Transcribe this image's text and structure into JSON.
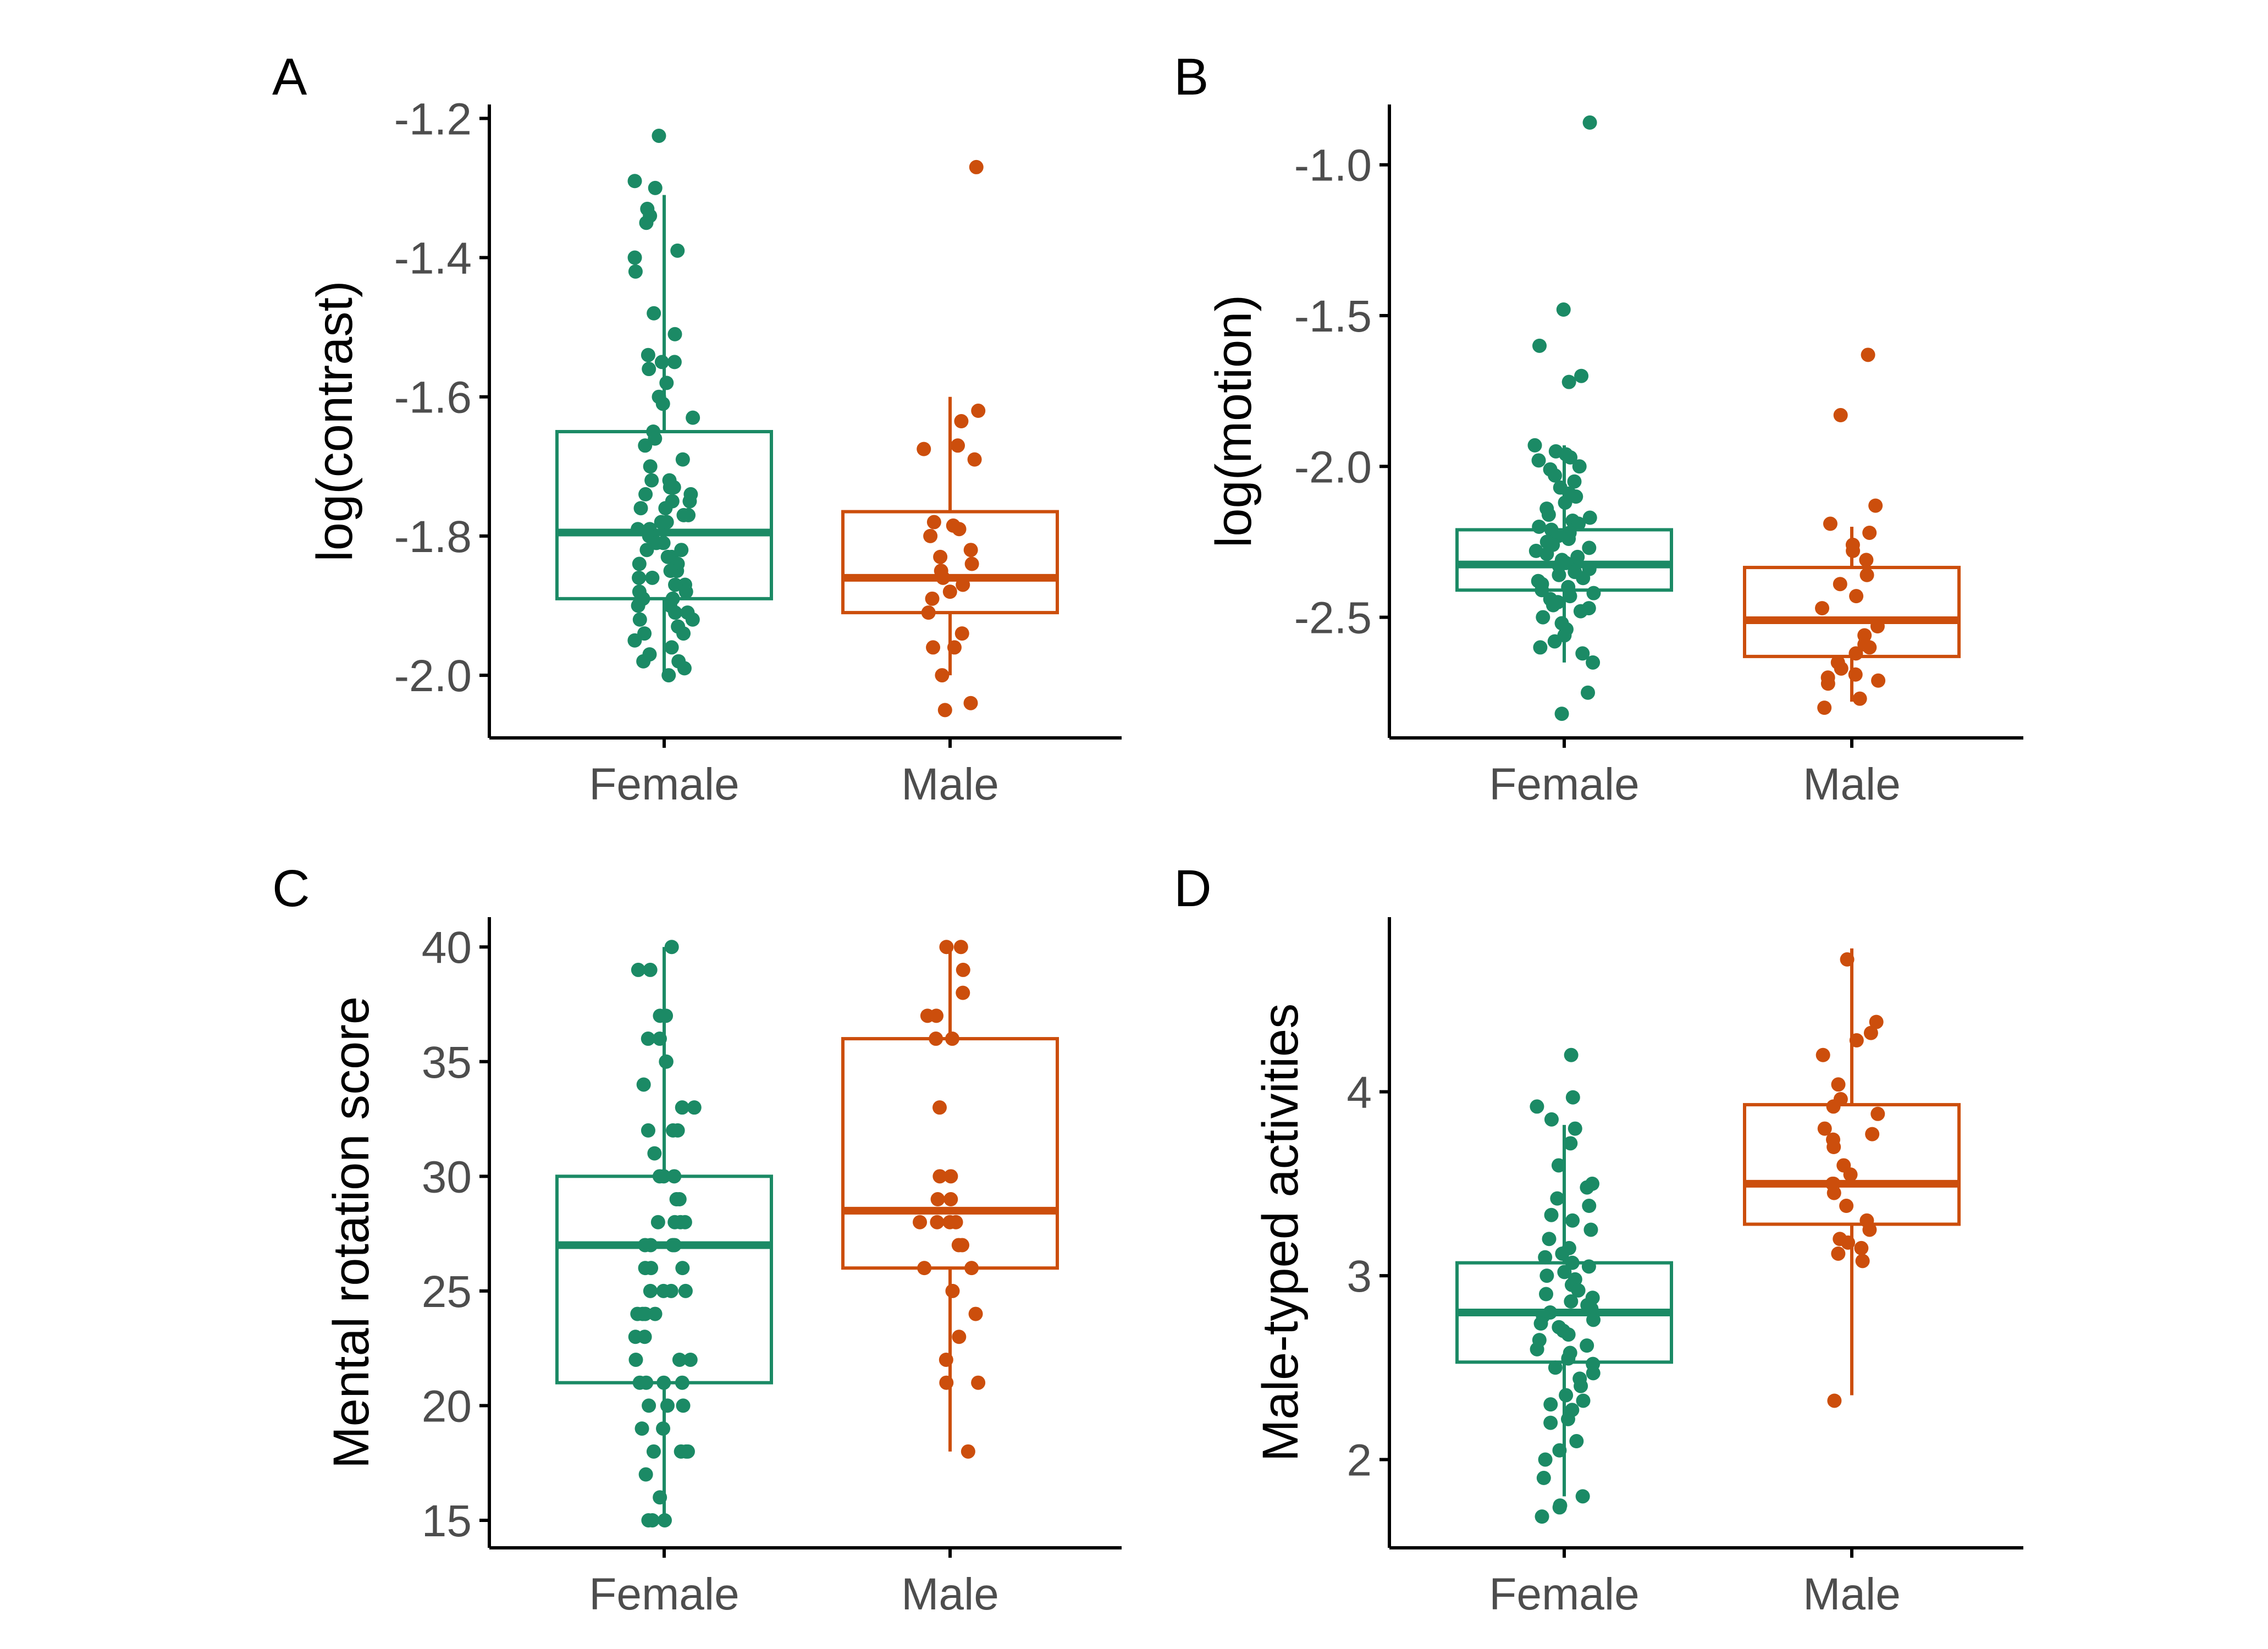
{
  "colors": {
    "Female": "#1b8a65",
    "Male": "#cc4e0c",
    "axis": "#000000",
    "tick_text": "#4d4d4d"
  },
  "chart_data": [
    {
      "panel": "A",
      "type": "boxplot",
      "ylabel": "log(contrast)",
      "ylim": [
        -2.09,
        -1.18
      ],
      "yticks": [
        -1.2,
        -1.4,
        -1.6,
        -1.8,
        -2.0
      ],
      "ytick_labels": [
        "-1.2",
        "-1.4",
        "-1.6",
        "-1.8",
        "-2.0"
      ],
      "categories": [
        "Female",
        "Male"
      ],
      "grid": false,
      "boxes": [
        {
          "category": "Female",
          "lower_whisker": -2.0,
          "q1": -1.89,
          "median": -1.795,
          "q3": -1.65,
          "upper_whisker": -1.31,
          "points": [
            -1.225,
            -1.29,
            -1.3,
            -1.33,
            -1.34,
            -1.35,
            -1.39,
            -1.4,
            -1.42,
            -1.48,
            -1.51,
            -1.54,
            -1.55,
            -1.55,
            -1.56,
            -1.58,
            -1.6,
            -1.61,
            -1.63,
            -1.65,
            -1.66,
            -1.67,
            -1.69,
            -1.7,
            -1.72,
            -1.72,
            -1.73,
            -1.73,
            -1.74,
            -1.74,
            -1.75,
            -1.75,
            -1.76,
            -1.76,
            -1.77,
            -1.77,
            -1.78,
            -1.78,
            -1.79,
            -1.79,
            -1.8,
            -1.8,
            -1.81,
            -1.81,
            -1.82,
            -1.82,
            -1.83,
            -1.83,
            -1.84,
            -1.84,
            -1.85,
            -1.85,
            -1.86,
            -1.86,
            -1.87,
            -1.87,
            -1.88,
            -1.88,
            -1.89,
            -1.89,
            -1.9,
            -1.9,
            -1.91,
            -1.91,
            -1.92,
            -1.92,
            -1.93,
            -1.94,
            -1.94,
            -1.95,
            -1.96,
            -1.97,
            -1.98,
            -1.98,
            -1.99,
            -2.0
          ]
        },
        {
          "category": "Male",
          "lower_whisker": -2.0,
          "q1": -1.91,
          "median": -1.86,
          "q3": -1.765,
          "upper_whisker": -1.6,
          "points": [
            -1.27,
            -1.62,
            -1.635,
            -1.67,
            -1.675,
            -1.69,
            -1.78,
            -1.785,
            -1.79,
            -1.8,
            -1.82,
            -1.83,
            -1.84,
            -1.85,
            -1.86,
            -1.87,
            -1.88,
            -1.89,
            -1.91,
            -1.94,
            -1.96,
            -1.96,
            -2.0,
            -2.04,
            -2.05
          ]
        }
      ]
    },
    {
      "panel": "B",
      "type": "boxplot",
      "ylabel": "log(motion)",
      "ylim": [
        -2.9,
        -0.8
      ],
      "yticks": [
        -1.0,
        -1.5,
        -2.0,
        -2.5
      ],
      "ytick_labels": [
        "-1.0",
        "-1.5",
        "-2.0",
        "-2.5"
      ],
      "categories": [
        "Female",
        "Male"
      ],
      "grid": false,
      "boxes": [
        {
          "category": "Female",
          "lower_whisker": -2.65,
          "q1": -2.41,
          "median": -2.325,
          "q3": -2.21,
          "upper_whisker": -1.93,
          "points": [
            -0.86,
            -1.48,
            -1.6,
            -1.7,
            -1.72,
            -1.93,
            -1.95,
            -1.96,
            -1.97,
            -1.98,
            -2.0,
            -2.01,
            -2.03,
            -2.05,
            -2.07,
            -2.09,
            -2.1,
            -2.12,
            -2.14,
            -2.16,
            -2.17,
            -2.18,
            -2.19,
            -2.2,
            -2.21,
            -2.22,
            -2.23,
            -2.24,
            -2.25,
            -2.26,
            -2.27,
            -2.28,
            -2.29,
            -2.3,
            -2.31,
            -2.32,
            -2.33,
            -2.34,
            -2.35,
            -2.36,
            -2.37,
            -2.38,
            -2.39,
            -2.4,
            -2.41,
            -2.42,
            -2.43,
            -2.44,
            -2.45,
            -2.46,
            -2.47,
            -2.48,
            -2.5,
            -2.52,
            -2.54,
            -2.56,
            -2.58,
            -2.6,
            -2.62,
            -2.65,
            -2.75,
            -2.82
          ]
        },
        {
          "category": "Male",
          "lower_whisker": -2.78,
          "q1": -2.63,
          "median": -2.51,
          "q3": -2.335,
          "upper_whisker": -2.2,
          "points": [
            -1.63,
            -1.83,
            -2.13,
            -2.19,
            -2.22,
            -2.26,
            -2.28,
            -2.31,
            -2.36,
            -2.39,
            -2.43,
            -2.47,
            -2.53,
            -2.56,
            -2.59,
            -2.6,
            -2.62,
            -2.65,
            -2.67,
            -2.69,
            -2.7,
            -2.71,
            -2.72,
            -2.77,
            -2.8
          ]
        }
      ]
    },
    {
      "panel": "C",
      "type": "boxplot",
      "ylabel": "Mental rotation score",
      "ylim": [
        13.8,
        41.3
      ],
      "yticks": [
        40,
        35,
        30,
        25,
        20,
        15
      ],
      "ytick_labels": [
        "40",
        "35",
        "30",
        "25",
        "20",
        "15"
      ],
      "categories": [
        "Female",
        "Male"
      ],
      "grid": false,
      "boxes": [
        {
          "category": "Female",
          "lower_whisker": 15,
          "q1": 21,
          "median": 27,
          "q3": 30,
          "upper_whisker": 40,
          "points": [
            40,
            39,
            39,
            37,
            37,
            36,
            36,
            35,
            35,
            34,
            33,
            33,
            32,
            32,
            32,
            31,
            30,
            30,
            30,
            29,
            29,
            28,
            28,
            28,
            28,
            27,
            27,
            27,
            27,
            26,
            26,
            26,
            25,
            25,
            25,
            25,
            24,
            24,
            24,
            24,
            23,
            23,
            22,
            22,
            22,
            21,
            21,
            21,
            21,
            20,
            20,
            20,
            19,
            19,
            18,
            18,
            18,
            18,
            17,
            16,
            15,
            15,
            15
          ]
        },
        {
          "category": "Male",
          "lower_whisker": 18,
          "q1": 26,
          "median": 28.5,
          "q3": 36,
          "upper_whisker": 40,
          "points": [
            40,
            40,
            39,
            38,
            37,
            37,
            36,
            36,
            33,
            30,
            30,
            29,
            29,
            28,
            28,
            28,
            28,
            27,
            27,
            26,
            26,
            25,
            24,
            23,
            22,
            21,
            21,
            18
          ]
        }
      ]
    },
    {
      "panel": "D",
      "type": "boxplot",
      "ylabel": "Male-typed activities",
      "ylim": [
        1.52,
        4.95
      ],
      "yticks": [
        4,
        3,
        2
      ],
      "ytick_labels": [
        "4",
        "3",
        "2"
      ],
      "categories": [
        "Female",
        "Male"
      ],
      "grid": false,
      "boxes": [
        {
          "category": "Female",
          "lower_whisker": 1.8,
          "q1": 2.53,
          "median": 2.8,
          "q3": 3.07,
          "upper_whisker": 3.82,
          "points": [
            4.2,
            3.97,
            3.92,
            3.85,
            3.8,
            3.72,
            3.6,
            3.5,
            3.48,
            3.42,
            3.38,
            3.33,
            3.3,
            3.25,
            3.2,
            3.15,
            3.12,
            3.1,
            3.07,
            3.05,
            3.02,
            3.0,
            2.98,
            2.95,
            2.92,
            2.9,
            2.88,
            2.86,
            2.84,
            2.82,
            2.8,
            2.78,
            2.76,
            2.74,
            2.72,
            2.7,
            2.68,
            2.65,
            2.62,
            2.6,
            2.58,
            2.55,
            2.52,
            2.5,
            2.47,
            2.44,
            2.4,
            2.35,
            2.32,
            2.3,
            2.27,
            2.22,
            2.2,
            2.1,
            2.05,
            2.0,
            1.9,
            1.8,
            1.75,
            1.74,
            1.69
          ]
        },
        {
          "category": "Male",
          "lower_whisker": 2.35,
          "q1": 3.28,
          "median": 3.5,
          "q3": 3.93,
          "upper_whisker": 4.78,
          "points": [
            4.72,
            4.38,
            4.32,
            4.28,
            4.2,
            4.04,
            3.96,
            3.92,
            3.88,
            3.8,
            3.77,
            3.74,
            3.7,
            3.6,
            3.55,
            3.5,
            3.5,
            3.45,
            3.38,
            3.3,
            3.25,
            3.2,
            3.18,
            3.15,
            3.12,
            3.08,
            2.32
          ]
        }
      ]
    }
  ]
}
